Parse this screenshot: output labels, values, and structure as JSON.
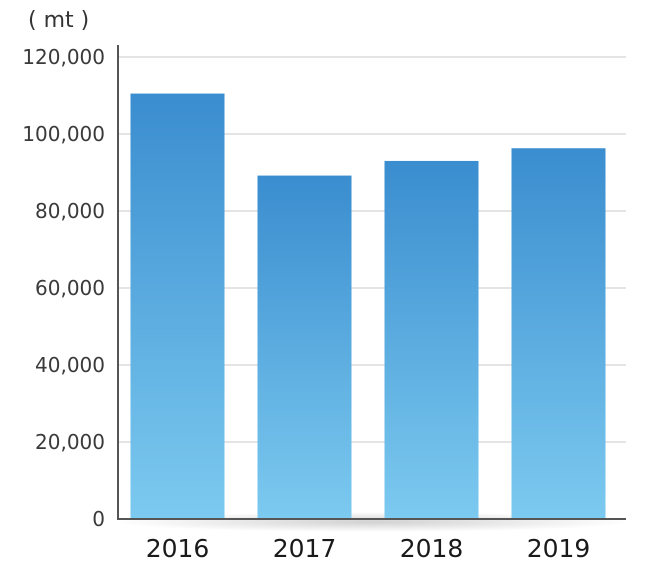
{
  "chart_data": {
    "type": "bar",
    "unit": "( mt )",
    "categories": [
      "2016",
      "2017",
      "2018",
      "2019"
    ],
    "values": [
      110500,
      89200,
      93000,
      96300
    ],
    "ylim": [
      0,
      120000
    ],
    "yticks": [
      0,
      20000,
      40000,
      60000,
      80000,
      100000,
      120000
    ],
    "ytick_labels": [
      "0",
      "20,000",
      "40,000",
      "60,000",
      "80,000",
      "100,000",
      "120,000"
    ],
    "grid": true,
    "colors": {
      "bar_top": "#3a8dcf",
      "bar_bottom": "#7ccaf0",
      "grid": "#c8c8c8",
      "axis": "#555555"
    }
  }
}
